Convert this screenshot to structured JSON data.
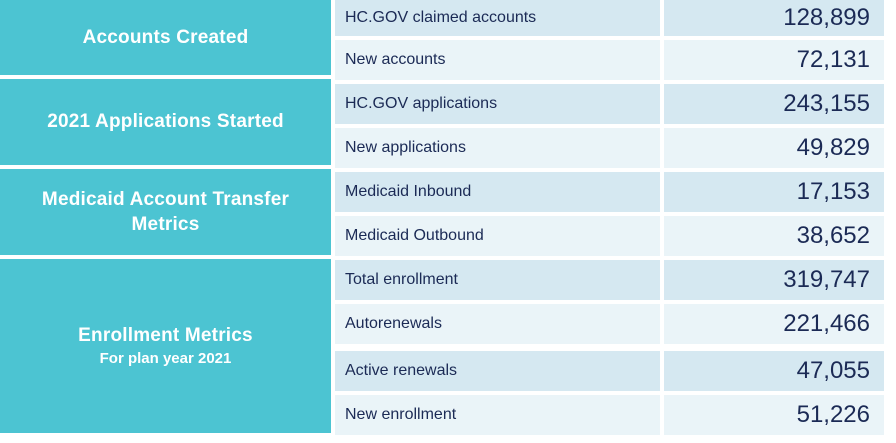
{
  "colors": {
    "section_teal": "#4cc4d2",
    "row_dark": "#d5e8f1",
    "row_light": "#eaf4f8",
    "text_navy": "#1b2a55",
    "divider_white": "#ffffff"
  },
  "sections": [
    {
      "title": "Accounts Created",
      "subtitle": ""
    },
    {
      "title": "2021 Applications Started",
      "subtitle": ""
    },
    {
      "title": "Medicaid Account Transfer Metrics",
      "subtitle": ""
    },
    {
      "title": "Enrollment Metrics",
      "subtitle": "For plan year 2021"
    }
  ],
  "rows": [
    {
      "label": "HC.GOV claimed accounts",
      "value": "128,899"
    },
    {
      "label": "New accounts",
      "value": "72,131"
    },
    {
      "label": "HC.GOV applications",
      "value": "243,155"
    },
    {
      "label": "New applications",
      "value": "49,829"
    },
    {
      "label": "Medicaid Inbound",
      "value": "17,153"
    },
    {
      "label": "Medicaid Outbound",
      "value": "38,652"
    },
    {
      "label": "Total enrollment",
      "value": "319,747"
    },
    {
      "label": "Autorenewals",
      "value": "221,466"
    },
    {
      "label": "Active renewals",
      "value": "47,055"
    },
    {
      "label": "New enrollment",
      "value": "51,226"
    }
  ],
  "chart_data": {
    "type": "table",
    "columns": [
      "Section",
      "Metric",
      "Value"
    ],
    "rows": [
      [
        "Accounts Created",
        "HC.GOV claimed accounts",
        128899
      ],
      [
        "Accounts Created",
        "New accounts",
        72131
      ],
      [
        "2021 Applications Started",
        "HC.GOV applications",
        243155
      ],
      [
        "2021 Applications Started",
        "New applications",
        49829
      ],
      [
        "Medicaid Account Transfer Metrics",
        "Medicaid Inbound",
        17153
      ],
      [
        "Medicaid Account Transfer Metrics",
        "Medicaid Outbound",
        38652
      ],
      [
        "Enrollment Metrics (For plan year 2021)",
        "Total enrollment",
        319747
      ],
      [
        "Enrollment Metrics (For plan year 2021)",
        "Autorenewals",
        221466
      ],
      [
        "Enrollment Metrics (For plan year 2021)",
        "Active renewals",
        47055
      ],
      [
        "Enrollment Metrics (For plan year 2021)",
        "New enrollment",
        51226
      ]
    ]
  }
}
